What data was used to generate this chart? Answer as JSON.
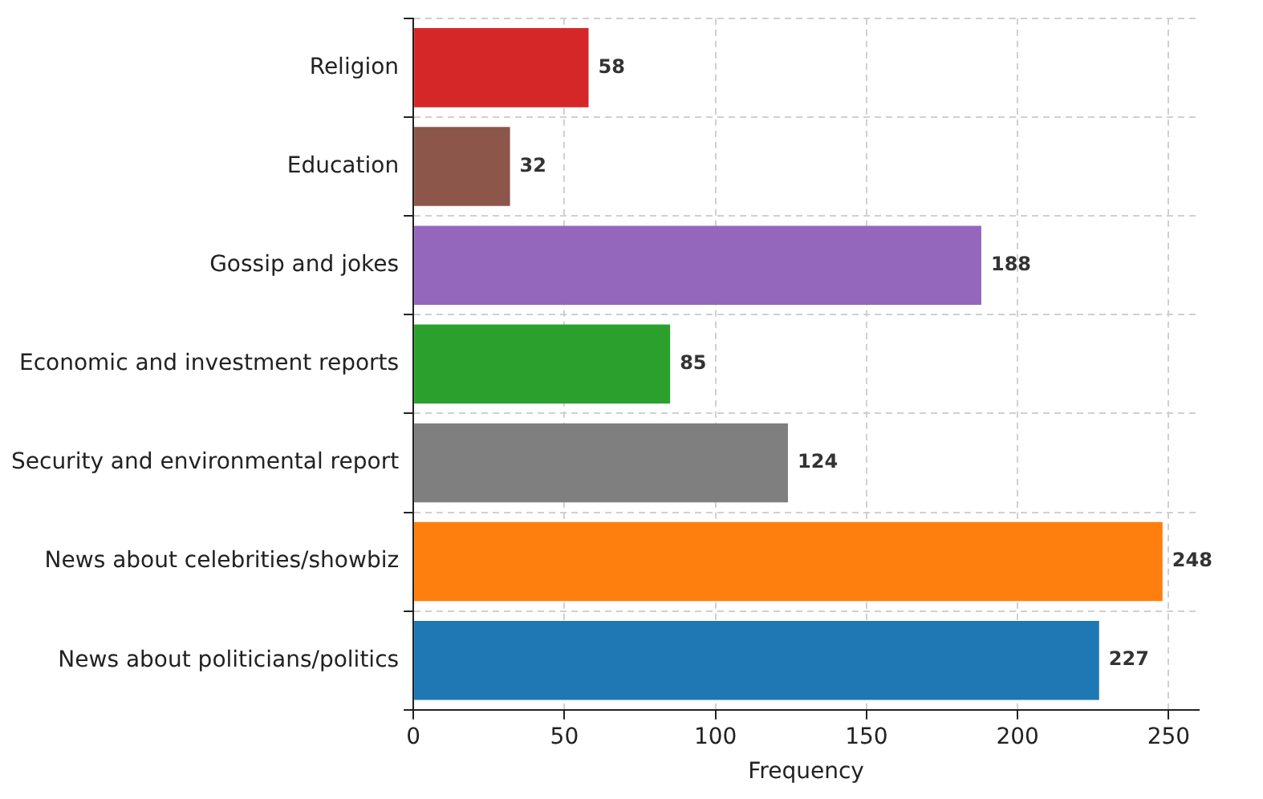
{
  "chart_data": {
    "type": "bar",
    "orientation": "horizontal",
    "xlabel": "Frequency",
    "categories": [
      "Religion",
      "Education",
      "Gossip and jokes",
      "Economic and investment reports",
      "Security and environmental report",
      "News about celebrities/showbiz",
      "News about politicians/politics"
    ],
    "values": [
      58,
      32,
      188,
      85,
      124,
      248,
      227
    ],
    "colors": [
      "#d62728",
      "#8c564b",
      "#9467bd",
      "#2ca02c",
      "#7f7f7f",
      "#ff7f0e",
      "#1f77b4"
    ],
    "xlim": [
      0,
      260
    ],
    "xticks": [
      0,
      50,
      100,
      150,
      200,
      250
    ],
    "grid": true,
    "data_labels": true
  }
}
